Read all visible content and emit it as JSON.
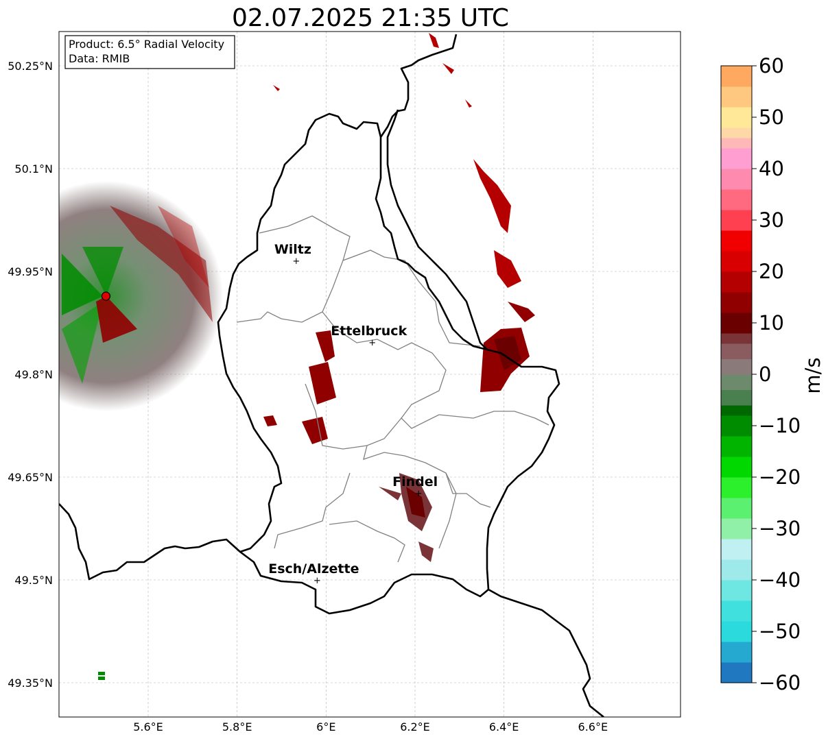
{
  "title": "02.07.2025 21:35 UTC",
  "info_box": {
    "product_line": "Product: 6.5° Radial Velocity",
    "data_line": "Data: RMIB"
  },
  "map": {
    "lon_ticks": [
      {
        "value": 5.6,
        "label": "5.6°E"
      },
      {
        "value": 5.8,
        "label": "5.8°E"
      },
      {
        "value": 6.0,
        "label": "6°E"
      },
      {
        "value": 6.2,
        "label": "6.2°E"
      },
      {
        "value": 6.4,
        "label": "6.4°E"
      },
      {
        "value": 6.6,
        "label": "6.6°E"
      }
    ],
    "lat_ticks": [
      {
        "value": 50.25,
        "label": "50.25°N"
      },
      {
        "value": 50.1,
        "label": "50.1°N"
      },
      {
        "value": 49.95,
        "label": "49.95°N"
      },
      {
        "value": 49.8,
        "label": "49.8°N"
      },
      {
        "value": 49.65,
        "label": "49.65°N"
      },
      {
        "value": 49.5,
        "label": "49.5°N"
      },
      {
        "value": 49.35,
        "label": "49.35°N"
      }
    ],
    "extent": {
      "lon_min": 5.4,
      "lon_max": 6.8,
      "lat_min": 49.3,
      "lat_max": 50.3
    },
    "gridlines": true,
    "radar_site": {
      "lon": 5.505,
      "lat": 49.914
    },
    "cities": [
      {
        "name": "Wiltz",
        "lon": 5.933,
        "lat": 49.966
      },
      {
        "name": "Ettelbruck",
        "lon": 6.104,
        "lat": 49.847
      },
      {
        "name": "Findel",
        "lon": 6.208,
        "lat": 49.627
      },
      {
        "name": "Esch/Alzette",
        "lon": 5.98,
        "lat": 49.5
      }
    ]
  },
  "colorbar": {
    "label": "m/s",
    "min": -60,
    "max": 60,
    "ticks": [
      {
        "value": 60,
        "label": "60"
      },
      {
        "value": 50,
        "label": "50"
      },
      {
        "value": 40,
        "label": "40"
      },
      {
        "value": 30,
        "label": "30"
      },
      {
        "value": 20,
        "label": "20"
      },
      {
        "value": 10,
        "label": "10"
      },
      {
        "value": 0,
        "label": "0"
      },
      {
        "value": -10,
        "label": "−10"
      },
      {
        "value": -20,
        "label": "−20"
      },
      {
        "value": -30,
        "label": "−30"
      },
      {
        "value": -40,
        "label": "−40"
      },
      {
        "value": -50,
        "label": "−50"
      },
      {
        "value": -60,
        "label": "−60"
      }
    ],
    "stops": [
      {
        "from": -60,
        "color": "#1f78c0"
      },
      {
        "from": -56,
        "color": "#26a9d0"
      },
      {
        "from": -52,
        "color": "#2bdadd"
      },
      {
        "from": -48,
        "color": "#3fe0de"
      },
      {
        "from": -44,
        "color": "#6ee6e2"
      },
      {
        "from": -40,
        "color": "#9eeaea"
      },
      {
        "from": -36,
        "color": "#c0f0f2"
      },
      {
        "from": -32,
        "color": "#90f0a8"
      },
      {
        "from": -28,
        "color": "#5cf070"
      },
      {
        "from": -24,
        "color": "#2cf02c"
      },
      {
        "from": -20,
        "color": "#00d800"
      },
      {
        "from": -16,
        "color": "#00b400"
      },
      {
        "from": -12,
        "color": "#008c00"
      },
      {
        "from": -8,
        "color": "#006800"
      },
      {
        "from": -6,
        "color": "#4a8050"
      },
      {
        "from": -3,
        "color": "#6e8a6c"
      },
      {
        "from": 0,
        "color": "#8a7a7a"
      },
      {
        "from": 3,
        "color": "#8a5c60"
      },
      {
        "from": 6,
        "color": "#7a3438"
      },
      {
        "from": 8,
        "color": "#6a0000"
      },
      {
        "from": 12,
        "color": "#900000"
      },
      {
        "from": 16,
        "color": "#b40000"
      },
      {
        "from": 20,
        "color": "#d80000"
      },
      {
        "from": 24,
        "color": "#f00000"
      },
      {
        "from": 28,
        "color": "#ff4050"
      },
      {
        "from": 32,
        "color": "#ff6a80"
      },
      {
        "from": 36,
        "color": "#ff8ab0"
      },
      {
        "from": 40,
        "color": "#ff9ed0"
      },
      {
        "from": 44,
        "color": "#ffb8b8"
      },
      {
        "from": 46,
        "color": "#ffd8a8"
      },
      {
        "from": 48,
        "color": "#ffe898"
      },
      {
        "from": 52,
        "color": "#ffc880"
      },
      {
        "from": 56,
        "color": "#ffa860"
      }
    ]
  },
  "colors": {
    "border": "#000000",
    "canton_lines": "#808080",
    "grid": "#b0b0b0",
    "radar_marker": "#e00000"
  }
}
